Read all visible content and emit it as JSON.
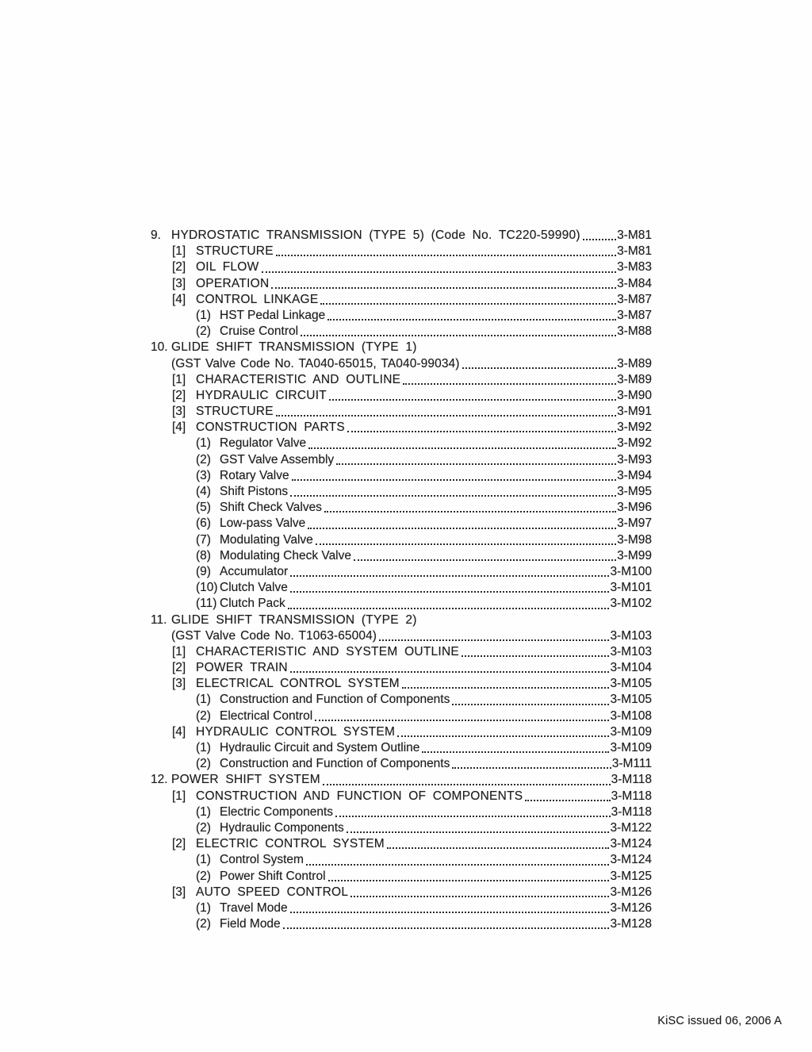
{
  "colors": {
    "ink": "#1d1d1d",
    "paper": "#fefefe"
  },
  "footer": {
    "issue_note": "KiSC issued 06, 2006 A"
  },
  "toc": {
    "entries": [
      {
        "num": "9.",
        "level": 0,
        "text": "HYDROSTATIC TRANSMISSION (TYPE 5) (Code No. TC220-59990)",
        "page": "3-M81",
        "leader": true
      },
      {
        "num": "[1]",
        "level": 1,
        "text": "STRUCTURE",
        "page": "3-M81",
        "leader": true
      },
      {
        "num": "[2]",
        "level": 1,
        "text": "OIL FLOW",
        "page": "3-M83",
        "leader": true
      },
      {
        "num": "[3]",
        "level": 1,
        "text": "OPERATION",
        "page": "3-M84",
        "leader": true
      },
      {
        "num": "[4]",
        "level": 1,
        "text": "CONTROL LINKAGE",
        "page": "3-M87",
        "leader": true
      },
      {
        "num": "(1)",
        "level": 2,
        "text": "HST Pedal Linkage",
        "page": "3-M87",
        "leader": true
      },
      {
        "num": "(2)",
        "level": 2,
        "text": "Cruise Control",
        "page": "3-M88",
        "leader": true
      },
      {
        "num": "10.",
        "level": 0,
        "text": "GLIDE SHIFT TRANSMISSION (TYPE 1)",
        "page": "",
        "leader": false
      },
      {
        "num": "",
        "level": 0,
        "cont": true,
        "text": "(GST Valve Code No. TA040-65015, TA040-99034)",
        "page": "3-M89",
        "leader": true
      },
      {
        "num": "[1]",
        "level": 1,
        "text": "CHARACTERISTIC AND OUTLINE",
        "page": "3-M89",
        "leader": true
      },
      {
        "num": "[2]",
        "level": 1,
        "text": "HYDRAULIC CIRCUIT",
        "page": "3-M90",
        "leader": true
      },
      {
        "num": "[3]",
        "level": 1,
        "text": "STRUCTURE",
        "page": "3-M91",
        "leader": true
      },
      {
        "num": "[4]",
        "level": 1,
        "text": "CONSTRUCTION PARTS",
        "page": "3-M92",
        "leader": true
      },
      {
        "num": "(1)",
        "level": 2,
        "text": "Regulator Valve",
        "page": "3-M92",
        "leader": true
      },
      {
        "num": "(2)",
        "level": 2,
        "text": "GST Valve Assembly",
        "page": "3-M93",
        "leader": true
      },
      {
        "num": "(3)",
        "level": 2,
        "text": "Rotary Valve",
        "page": "3-M94",
        "leader": true
      },
      {
        "num": "(4)",
        "level": 2,
        "text": "Shift Pistons",
        "page": "3-M95",
        "leader": true
      },
      {
        "num": "(5)",
        "level": 2,
        "text": "Shift Check Valves",
        "page": "3-M96",
        "leader": true
      },
      {
        "num": "(6)",
        "level": 2,
        "text": "Low-pass Valve",
        "page": "3-M97",
        "leader": true
      },
      {
        "num": "(7)",
        "level": 2,
        "text": "Modulating Valve",
        "page": "3-M98",
        "leader": true
      },
      {
        "num": "(8)",
        "level": 2,
        "text": "Modulating Check Valve",
        "page": "3-M99",
        "leader": true
      },
      {
        "num": "(9)",
        "level": 2,
        "text": "Accumulator",
        "page": "3-M100",
        "leader": true
      },
      {
        "num": "(10)",
        "level": 2,
        "text": "Clutch Valve",
        "page": "3-M101",
        "leader": true
      },
      {
        "num": "(11)",
        "level": 2,
        "text": "Clutch Pack",
        "page": "3-M102",
        "leader": true
      },
      {
        "num": "11.",
        "level": 0,
        "text": "GLIDE SHIFT TRANSMISSION (TYPE 2)",
        "page": "",
        "leader": false
      },
      {
        "num": "",
        "level": 0,
        "cont": true,
        "text": "(GST Valve Code No. T1063-65004)",
        "page": "3-M103",
        "leader": true
      },
      {
        "num": "[1]",
        "level": 1,
        "text": "CHARACTERISTIC AND SYSTEM OUTLINE",
        "page": "3-M103",
        "leader": true
      },
      {
        "num": "[2]",
        "level": 1,
        "text": "POWER TRAIN",
        "page": "3-M104",
        "leader": true
      },
      {
        "num": "[3]",
        "level": 1,
        "text": "ELECTRICAL CONTROL SYSTEM",
        "page": "3-M105",
        "leader": true
      },
      {
        "num": "(1)",
        "level": 2,
        "text": "Construction and Function of Components",
        "page": "3-M105",
        "leader": true
      },
      {
        "num": "(2)",
        "level": 2,
        "text": "Electrical Control",
        "page": "3-M108",
        "leader": true
      },
      {
        "num": "[4]",
        "level": 1,
        "text": "HYDRAULIC CONTROL SYSTEM",
        "page": "3-M109",
        "leader": true
      },
      {
        "num": "(1)",
        "level": 2,
        "text": "Hydraulic Circuit and System Outline",
        "page": "3-M109",
        "leader": true
      },
      {
        "num": "(2)",
        "level": 2,
        "text": "Construction and Function of Components",
        "page": "3-M111",
        "leader": true
      },
      {
        "num": "12.",
        "level": 0,
        "text": "POWER SHIFT SYSTEM",
        "page": "3-M118",
        "leader": true
      },
      {
        "num": "[1]",
        "level": 1,
        "text": "CONSTRUCTION AND FUNCTION OF COMPONENTS",
        "page": "3-M118",
        "leader": true
      },
      {
        "num": "(1)",
        "level": 2,
        "text": "Electric Components",
        "page": "3-M118",
        "leader": true
      },
      {
        "num": "(2)",
        "level": 2,
        "text": "Hydraulic Components",
        "page": "3-M122",
        "leader": true
      },
      {
        "num": "[2]",
        "level": 1,
        "text": "ELECTRIC CONTROL SYSTEM",
        "page": "3-M124",
        "leader": true
      },
      {
        "num": "(1)",
        "level": 2,
        "text": "Control System",
        "page": "3-M124",
        "leader": true
      },
      {
        "num": "(2)",
        "level": 2,
        "text": "Power Shift Control",
        "page": "3-M125",
        "leader": true
      },
      {
        "num": "[3]",
        "level": 1,
        "text": "AUTO SPEED CONTROL",
        "page": "3-M126",
        "leader": true
      },
      {
        "num": "(1)",
        "level": 2,
        "text": "Travel Mode",
        "page": "3-M126",
        "leader": true
      },
      {
        "num": "(2)",
        "level": 2,
        "text": "Field Mode",
        "page": "3-M128",
        "leader": true
      }
    ]
  }
}
